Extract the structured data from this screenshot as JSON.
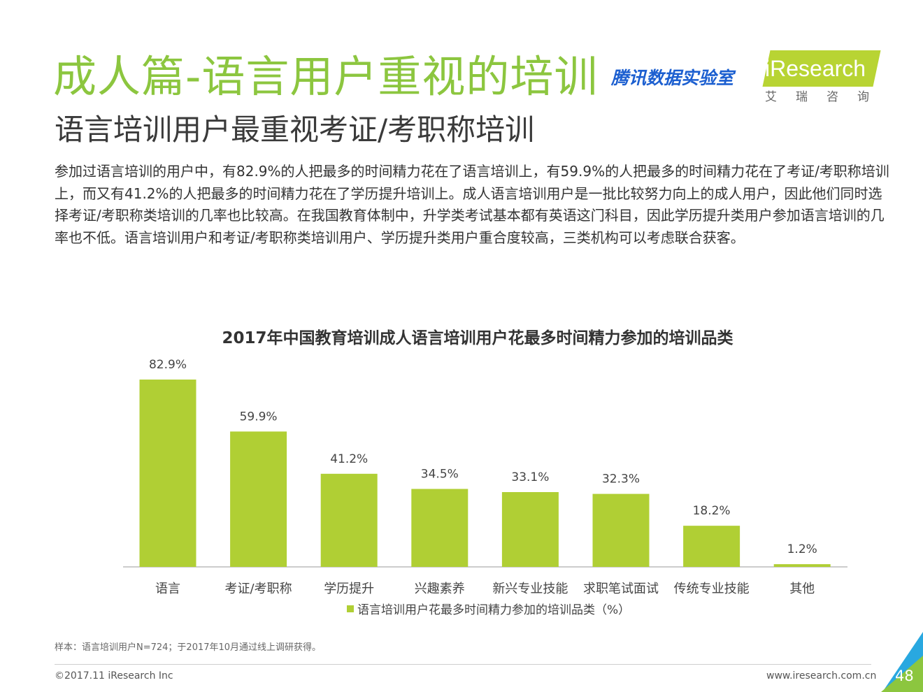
{
  "header": {
    "title": "成人篇-语言用户重视的培训",
    "subtitle": "语言培训用户最重视考证/考职称培训",
    "tencent_lab": "腾讯数据实验室",
    "logo_text": "iResearch",
    "logo_cn": "艾瑞咨询",
    "brand_color": "#8cc63f",
    "logo_color": "#b8d433"
  },
  "body_text": "参加过语言培训的用户中，有82.9%的人把最多的时间精力花在了语言培训上，有59.9%的人把最多的时间精力花在了考证/考职称培训上，而又有41.2%的人把最多的时间精力花在了学历提升培训上。成人语言培训用户是一批比较努力向上的成人用户，因此他们同时选择考证/考职称类培训的几率也比较高。在我国教育体制中，升学类考试基本都有英语这门科目，因此学历提升类用户参加语言培训的几率也不低。语言培训用户和考证/考职称类培训用户、学历提升类用户重合度较高，三类机构可以考虑联合获客。",
  "chart_data": {
    "type": "bar",
    "title": "2017年中国教育培训成人语言培训用户花最多时间精力参加的培训品类",
    "categories": [
      "语言",
      "考证/考职称",
      "学历提升",
      "兴趣素养",
      "新兴专业技能",
      "求职笔试面试",
      "传统专业技能",
      "其他"
    ],
    "series": [
      {
        "name": "语言培训用户花最多时间精力参加的培训品类（%）",
        "values": [
          82.9,
          59.9,
          41.2,
          34.5,
          33.1,
          32.3,
          18.2,
          1.2
        ],
        "color": "#b0cf34"
      }
    ],
    "data_labels": [
      "82.9%",
      "59.9%",
      "41.2%",
      "34.5%",
      "33.1%",
      "32.3%",
      "18.2%",
      "1.2%"
    ],
    "ylim": [
      0,
      82.9
    ],
    "grid": false,
    "legend_position": "bottom-center"
  },
  "footer": {
    "footnote": "样本：语言培训用户N=724；于2017年10月通过线上调研获得。",
    "copyright": "©2017.11 iResearch Inc",
    "website": "www.iresearch.com.cn",
    "page_number": "48",
    "corner_colors": [
      "#8cc63f",
      "#29a8e0"
    ]
  }
}
